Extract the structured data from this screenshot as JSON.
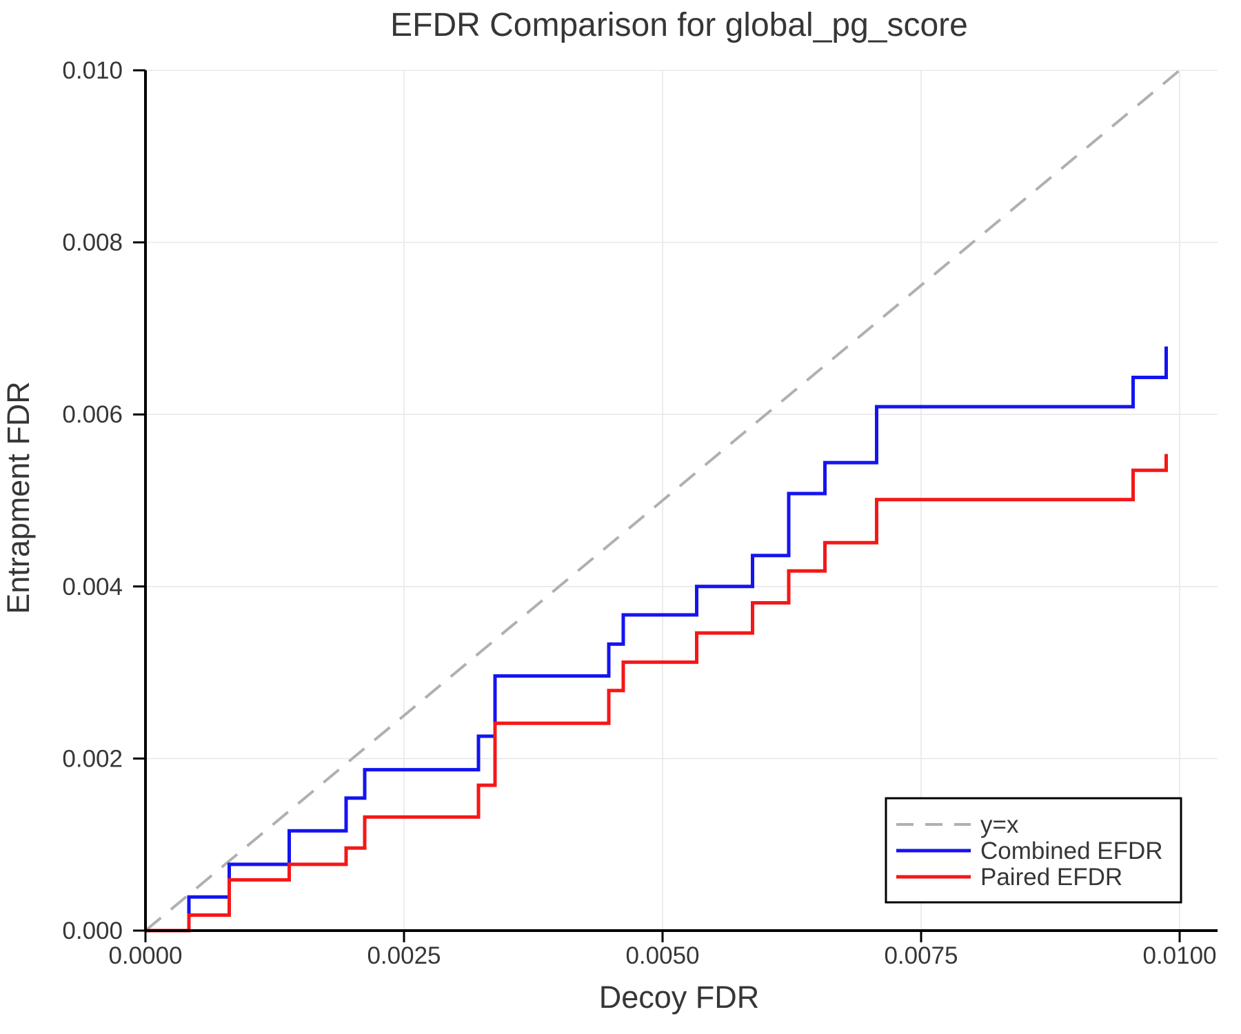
{
  "chart_data": {
    "type": "line",
    "subtype": "step-post",
    "title": "EFDR Comparison for global_pg_score",
    "xlabel": "Decoy FDR",
    "ylabel": "Entrapment FDR",
    "xlim": [
      0.0,
      0.01
    ],
    "ylim": [
      0.0,
      0.01
    ],
    "grid": true,
    "legend_position": "bottom-right",
    "x_ticks": {
      "values": [
        0.0,
        0.0025,
        0.005,
        0.0075,
        0.01
      ],
      "labels": [
        "0.0000",
        "0.0025",
        "0.0050",
        "0.0075",
        "0.0100"
      ]
    },
    "y_ticks": {
      "values": [
        0.0,
        0.002,
        0.004,
        0.006,
        0.008,
        0.01
      ],
      "labels": [
        "0.000",
        "0.002",
        "0.004",
        "0.006",
        "0.008",
        "0.010"
      ]
    },
    "reference": {
      "label": "y=x",
      "style": "dashed",
      "color": "#b0b0b0",
      "points_x": [
        0.0,
        0.01
      ],
      "points_y": [
        0.0,
        0.01
      ]
    },
    "series": [
      {
        "name": "Combined EFDR",
        "color": "#1414f0",
        "x": [
          0.0,
          0.00042,
          0.00081,
          0.00139,
          0.00194,
          0.00212,
          0.00322,
          0.00338,
          0.00448,
          0.00462,
          0.00533,
          0.00587,
          0.00622,
          0.00657,
          0.00707,
          0.00955,
          0.00987
        ],
        "y": [
          0.0,
          0.00039,
          0.00077,
          0.00116,
          0.00154,
          0.00187,
          0.00226,
          0.00296,
          0.00333,
          0.00367,
          0.004,
          0.00436,
          0.00508,
          0.00544,
          0.00609,
          0.00643,
          0.00679
        ]
      },
      {
        "name": "Paired EFDR",
        "color": "#f51717",
        "x": [
          0.0,
          0.00042,
          0.00081,
          0.00139,
          0.00194,
          0.00212,
          0.00322,
          0.00338,
          0.00448,
          0.00462,
          0.00533,
          0.00587,
          0.00622,
          0.00657,
          0.00707,
          0.00955,
          0.00987
        ],
        "y": [
          0.0,
          0.00018,
          0.00059,
          0.00077,
          0.00096,
          0.00132,
          0.00169,
          0.00241,
          0.00279,
          0.00312,
          0.00346,
          0.00381,
          0.00418,
          0.00451,
          0.00501,
          0.00535,
          0.00554
        ]
      }
    ],
    "colors": {
      "grid": "#e8e8e8",
      "axis": "#000000",
      "text": "#363636",
      "legend_border": "#000000",
      "background": "#ffffff"
    }
  }
}
